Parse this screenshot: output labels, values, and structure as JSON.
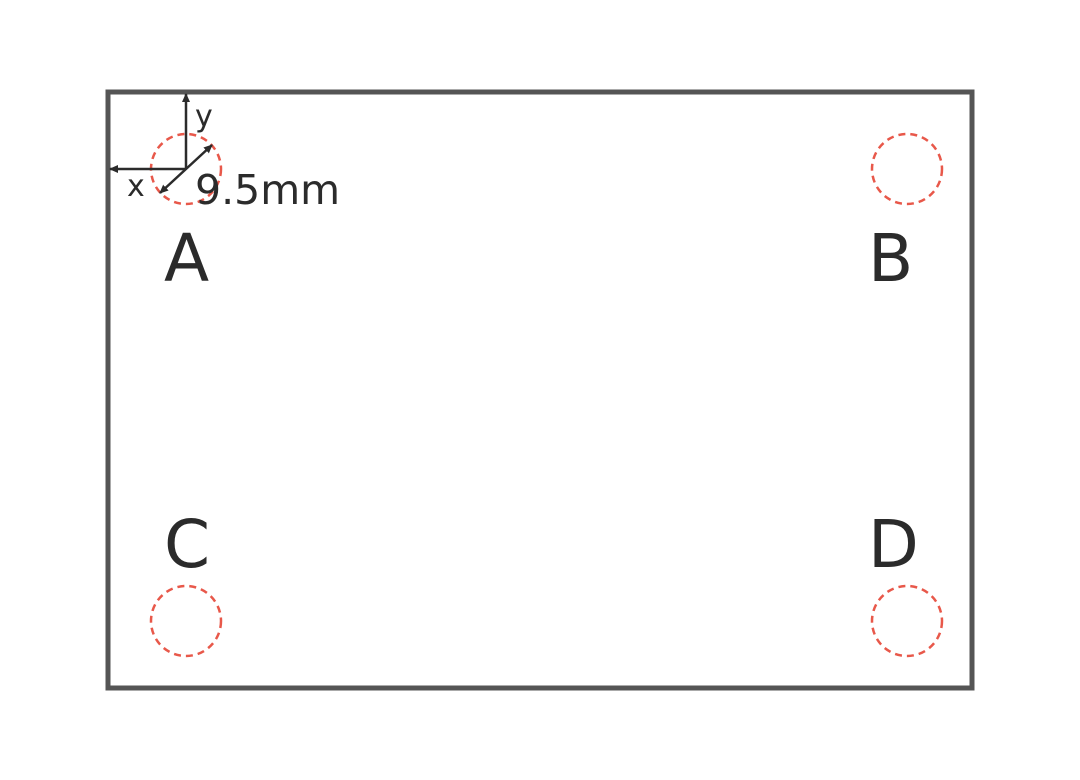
{
  "colors": {
    "board_outline": "#555555",
    "hole_outline": "#e8584a",
    "text": "#2b2b2b"
  },
  "axes": {
    "x_label": "x",
    "y_label": "y"
  },
  "dimension": {
    "label": "9.5mm"
  },
  "corners": {
    "a": "A",
    "b": "B",
    "c": "C",
    "d": "D"
  }
}
